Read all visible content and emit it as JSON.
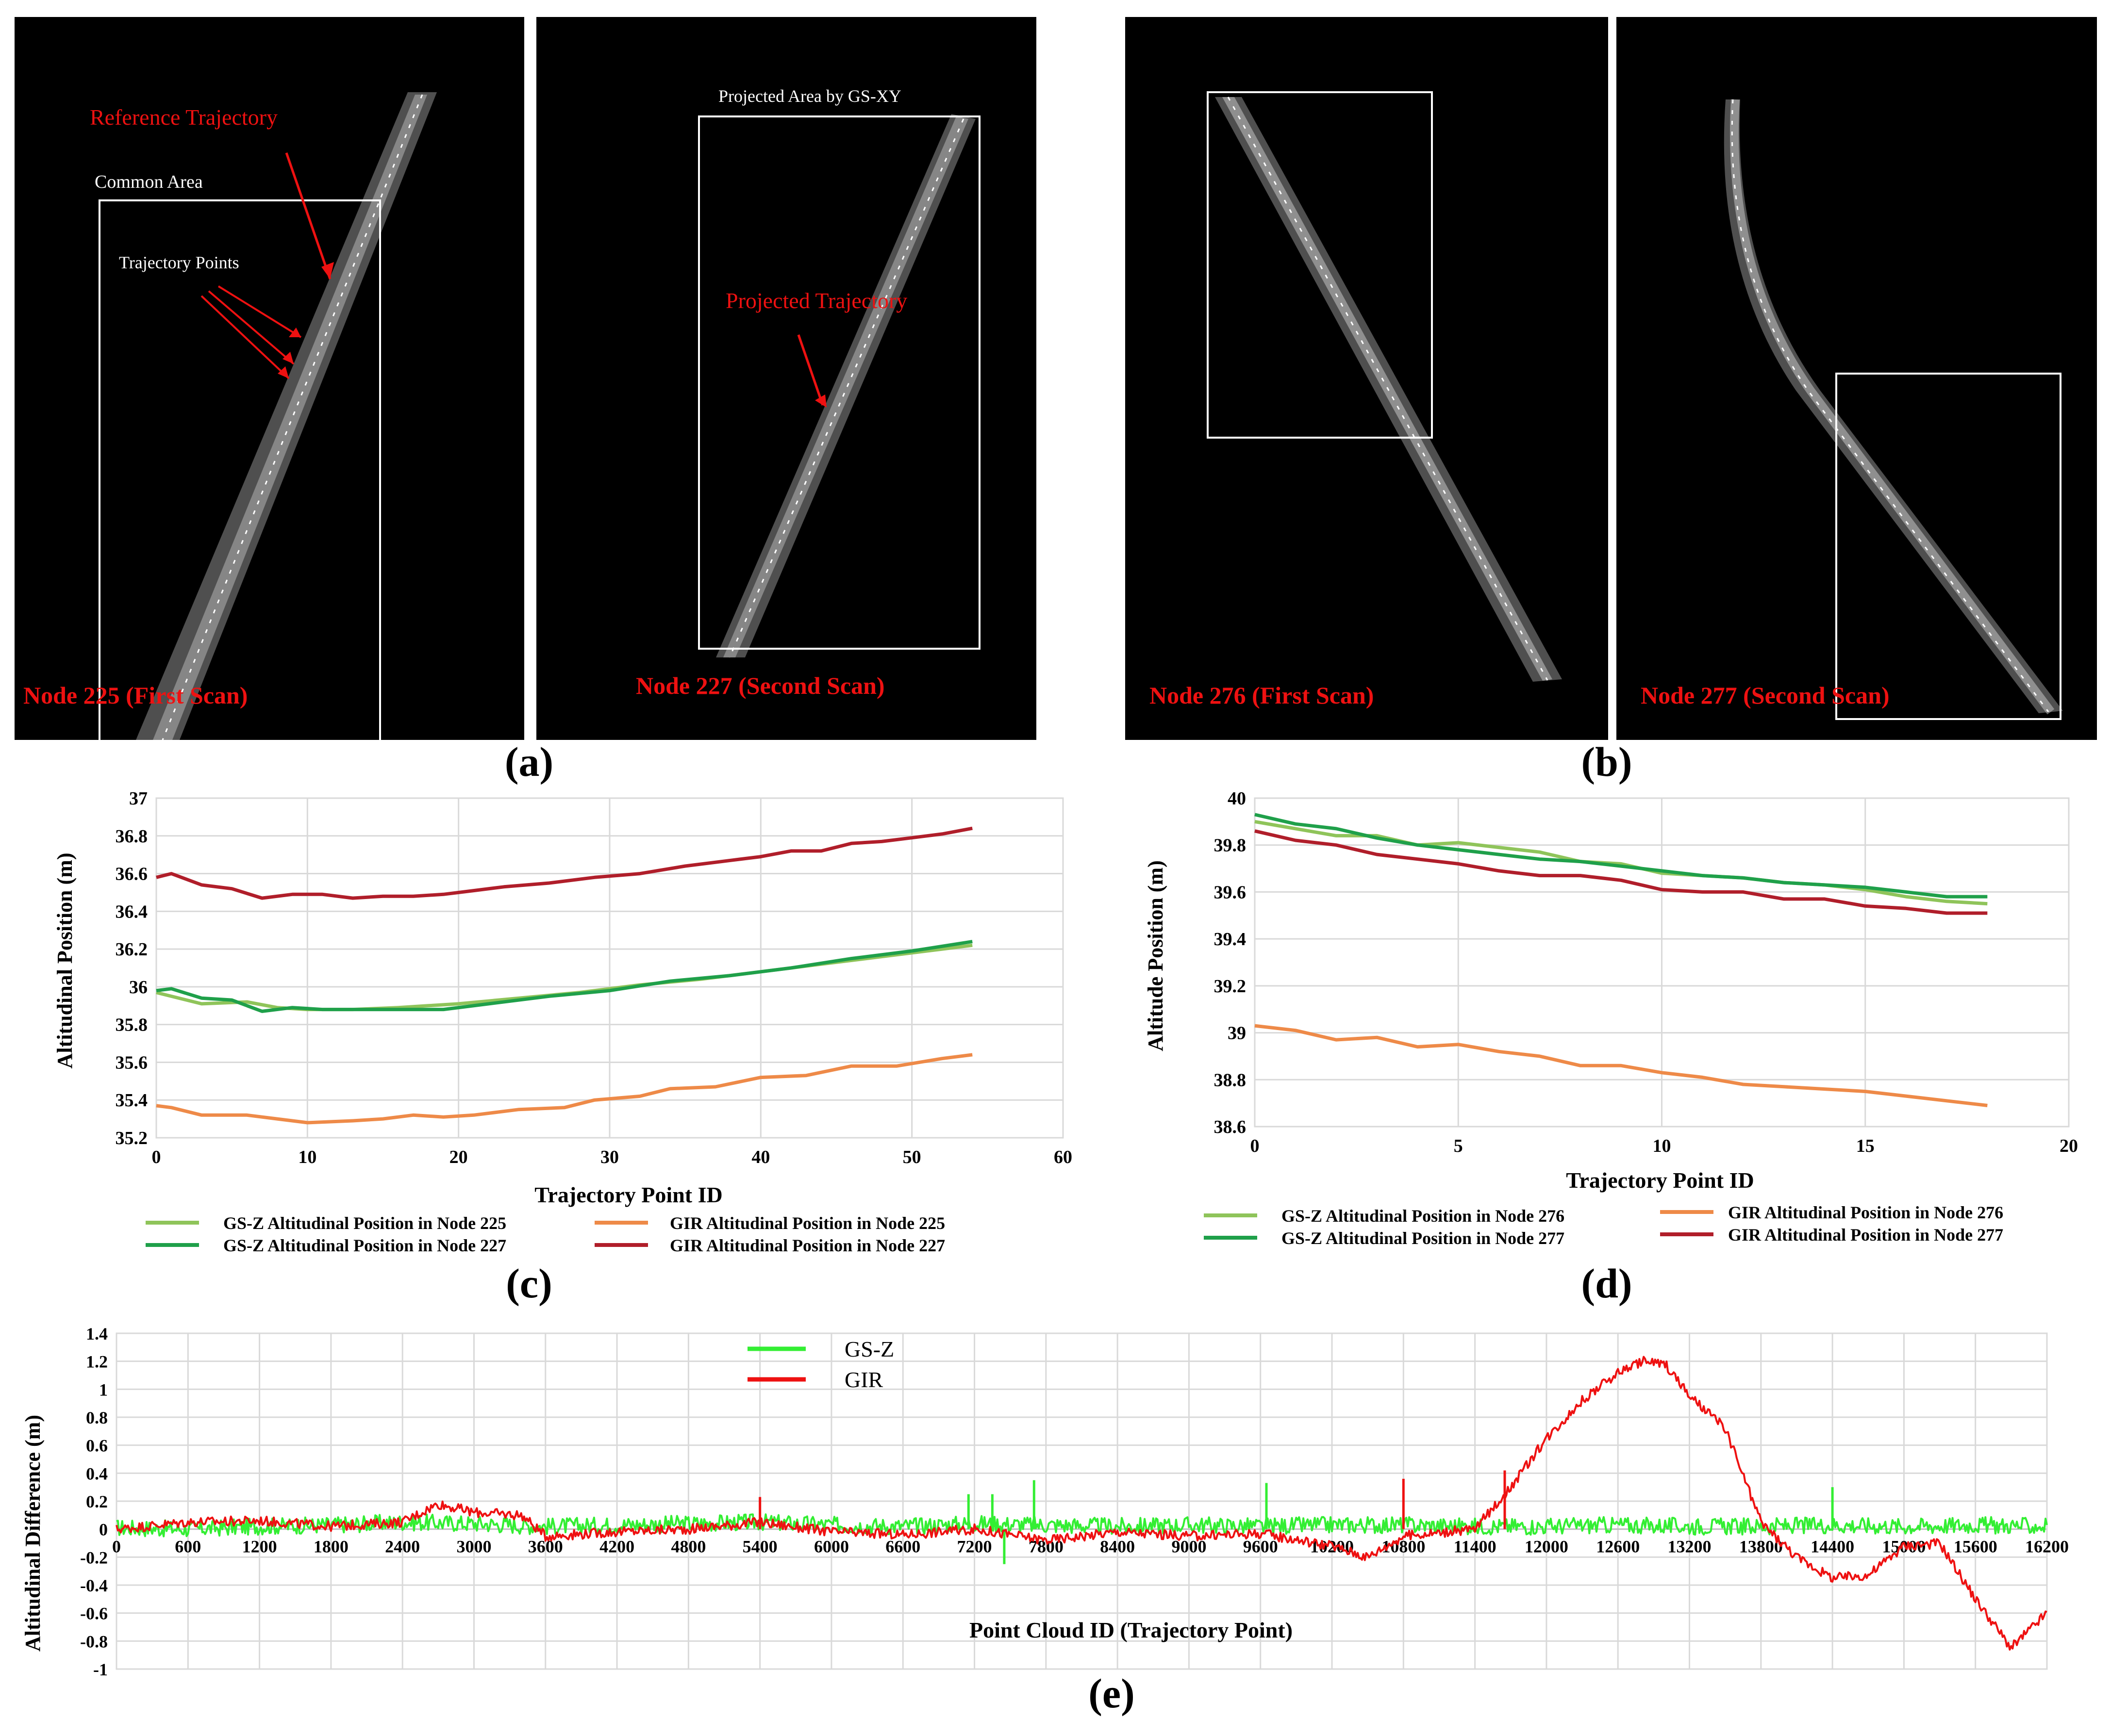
{
  "scan_panels": {
    "a1": {
      "node_label": "Node 225 (First Scan)",
      "ref_label": "Reference Trajectory",
      "common_label": "Common Area",
      "points_label": "Trajectory Points"
    },
    "a2": {
      "node_label": "Node 227 (Second Scan)",
      "proj_area_label": "Projected Area by GS-XY",
      "proj_traj_label": "Projected Trajectory"
    },
    "b1": {
      "node_label": "Node 276 (First Scan)"
    },
    "b2": {
      "node_label": "Node 277 (Second Scan)"
    }
  },
  "captions": {
    "a": "(a)",
    "b": "(b)",
    "c": "(c)",
    "d": "(d)",
    "e": "(e)"
  },
  "colors": {
    "gsz_light": "#8fc45a",
    "gsz_dark": "#1fa04a",
    "gir_orange": "#ee8a48",
    "gir_dark": "#b01e2a",
    "gsz_bright": "#33ee33",
    "gir_red": "#ee1111",
    "annotation_red": "#ee1111"
  },
  "chart_data": [
    {
      "id": "c",
      "type": "line",
      "xlabel": "Trajectory Point ID",
      "ylabel": "Altitudinal Position (m)",
      "xlim": [
        0,
        60
      ],
      "ylim": [
        35.2,
        37
      ],
      "xticks": [
        0,
        10,
        20,
        30,
        40,
        50,
        60
      ],
      "yticks": [
        35.2,
        35.4,
        35.6,
        35.8,
        36,
        36.2,
        36.4,
        36.6,
        36.8,
        37
      ],
      "series": [
        {
          "name": "GS-Z Altitudinal Position in Node 225",
          "color": "#8fc45a",
          "x": [
            0,
            3,
            6,
            8,
            10,
            13,
            16,
            18,
            20,
            24,
            28,
            32,
            36,
            40,
            44,
            48,
            52,
            54
          ],
          "values": [
            35.97,
            35.91,
            35.92,
            35.89,
            35.88,
            35.88,
            35.89,
            35.9,
            35.91,
            35.94,
            35.97,
            36.01,
            36.04,
            36.08,
            36.12,
            36.16,
            36.2,
            36.22
          ]
        },
        {
          "name": "GS-Z Altitudinal Position in Node 227",
          "color": "#1fa04a",
          "x": [
            0,
            1,
            3,
            5,
            7,
            9,
            11,
            13,
            16,
            19,
            22,
            26,
            30,
            34,
            38,
            42,
            46,
            50,
            54
          ],
          "values": [
            35.98,
            35.99,
            35.94,
            35.93,
            35.87,
            35.89,
            35.88,
            35.88,
            35.88,
            35.88,
            35.91,
            35.95,
            35.98,
            36.03,
            36.06,
            36.1,
            36.15,
            36.19,
            36.24
          ]
        },
        {
          "name": "GIR Altitudinal Position in Node 225",
          "color": "#ee8a48",
          "x": [
            0,
            1,
            3,
            6,
            8,
            10,
            13,
            15,
            17,
            19,
            21,
            24,
            27,
            29,
            32,
            34,
            37,
            40,
            43,
            46,
            49,
            52,
            54
          ],
          "values": [
            35.37,
            35.36,
            35.32,
            35.32,
            35.3,
            35.28,
            35.29,
            35.3,
            35.32,
            35.31,
            35.32,
            35.35,
            35.36,
            35.4,
            35.42,
            35.46,
            35.47,
            35.52,
            35.53,
            35.58,
            35.58,
            35.62,
            35.64
          ]
        },
        {
          "name": "GIR Altitudinal Position in Node 227",
          "color": "#b01e2a",
          "x": [
            0,
            1,
            3,
            5,
            7,
            9,
            11,
            13,
            15,
            17,
            19,
            21,
            23,
            26,
            29,
            32,
            35,
            38,
            40,
            42,
            44,
            46,
            48,
            50,
            52,
            54
          ],
          "values": [
            36.58,
            36.6,
            36.54,
            36.52,
            36.47,
            36.49,
            36.49,
            36.47,
            36.48,
            36.48,
            36.49,
            36.51,
            36.53,
            36.55,
            36.58,
            36.6,
            36.64,
            36.67,
            36.69,
            36.72,
            36.72,
            36.76,
            36.77,
            36.79,
            36.81,
            36.84
          ]
        }
      ]
    },
    {
      "id": "d",
      "type": "line",
      "xlabel": "Trajectory Point ID",
      "ylabel": "Altitude Position (m)",
      "xlim": [
        0,
        20
      ],
      "ylim": [
        38.6,
        40
      ],
      "xticks": [
        0,
        5,
        10,
        15,
        20
      ],
      "yticks": [
        38.6,
        38.8,
        39,
        39.2,
        39.4,
        39.6,
        39.8,
        40
      ],
      "series": [
        {
          "name": "GS-Z Altitudinal Position in Node 276",
          "color": "#8fc45a",
          "x": [
            0,
            1,
            2,
            3,
            4,
            5,
            6,
            7,
            8,
            9,
            10,
            11,
            12,
            13,
            14,
            15,
            16,
            17,
            18
          ],
          "values": [
            39.9,
            39.87,
            39.84,
            39.84,
            39.8,
            39.81,
            39.79,
            39.77,
            39.73,
            39.72,
            39.68,
            39.67,
            39.66,
            39.64,
            39.63,
            39.61,
            39.58,
            39.56,
            39.55
          ]
        },
        {
          "name": "GS-Z Altitudinal Position in Node 277",
          "color": "#1fa04a",
          "x": [
            0,
            1,
            2,
            3,
            4,
            5,
            6,
            7,
            8,
            9,
            10,
            11,
            12,
            13,
            14,
            15,
            16,
            17,
            18
          ],
          "values": [
            39.93,
            39.89,
            39.87,
            39.83,
            39.8,
            39.78,
            39.76,
            39.74,
            39.73,
            39.71,
            39.69,
            39.67,
            39.66,
            39.64,
            39.63,
            39.62,
            39.6,
            39.58,
            39.58
          ]
        },
        {
          "name": "GIR Altitudinal Position in Node 276",
          "color": "#ee8a48",
          "x": [
            0,
            1,
            2,
            3,
            4,
            5,
            6,
            7,
            8,
            9,
            10,
            11,
            12,
            13,
            14,
            15,
            16,
            17,
            18
          ],
          "values": [
            39.03,
            39.01,
            38.97,
            38.98,
            38.94,
            38.95,
            38.92,
            38.9,
            38.86,
            38.86,
            38.83,
            38.81,
            38.78,
            38.77,
            38.76,
            38.75,
            38.73,
            38.71,
            38.69
          ]
        },
        {
          "name": "GIR Altitudinal Position in Node 277",
          "color": "#b01e2a",
          "x": [
            0,
            1,
            2,
            3,
            4,
            5,
            6,
            7,
            8,
            9,
            10,
            11,
            12,
            13,
            14,
            15,
            16,
            17,
            18
          ],
          "values": [
            39.86,
            39.82,
            39.8,
            39.76,
            39.74,
            39.72,
            39.69,
            39.67,
            39.67,
            39.65,
            39.61,
            39.6,
            39.6,
            39.57,
            39.57,
            39.54,
            39.53,
            39.51,
            39.51
          ]
        }
      ]
    },
    {
      "id": "e",
      "type": "line",
      "xlabel": "Point Cloud ID (Trajectory Point)",
      "ylabel": "Altitudinal Difference (m)",
      "xlim": [
        0,
        16200
      ],
      "ylim": [
        -1,
        1.4
      ],
      "xticks": [
        0,
        600,
        1200,
        1800,
        2400,
        3000,
        3600,
        4200,
        4800,
        5400,
        6000,
        6600,
        7200,
        7800,
        8400,
        9000,
        9600,
        10200,
        10800,
        11400,
        12000,
        12600,
        13200,
        13800,
        14400,
        15000,
        15600,
        16200
      ],
      "yticks": [
        -1,
        -0.8,
        -0.6,
        -0.4,
        -0.2,
        0,
        0.2,
        0.4,
        0.6,
        0.8,
        1,
        1.2,
        1.4
      ],
      "series": [
        {
          "name": "GS-Z",
          "color": "#33ee33",
          "x": [
            0,
            600,
            1200,
            1800,
            2400,
            3000,
            3600,
            4200,
            4800,
            5400,
            6000,
            6600,
            7200,
            7800,
            8400,
            9000,
            9600,
            10200,
            10800,
            11400,
            12000,
            12600,
            13200,
            13800,
            14400,
            15000,
            15600,
            16200
          ],
          "values": [
            0.01,
            0.0,
            0.02,
            0.03,
            0.05,
            0.04,
            0.02,
            0.03,
            0.04,
            0.05,
            0.03,
            0.02,
            0.04,
            0.03,
            0.02,
            0.03,
            0.02,
            0.03,
            0.03,
            0.02,
            0.02,
            0.03,
            0.02,
            0.02,
            0.03,
            0.02,
            0.03,
            0.02
          ],
          "spikes": [
            {
              "x": 7150,
              "value": 0.25
            },
            {
              "x": 7350,
              "value": 0.25
            },
            {
              "x": 7450,
              "value": -0.25
            },
            {
              "x": 7700,
              "value": 0.35
            },
            {
              "x": 9650,
              "value": 0.33
            },
            {
              "x": 14400,
              "value": 0.3
            }
          ]
        },
        {
          "name": "GIR",
          "color": "#ee1111",
          "x": [
            0,
            600,
            1200,
            1800,
            2400,
            2700,
            3000,
            3400,
            3600,
            4200,
            4800,
            5400,
            6000,
            6600,
            7200,
            7800,
            8400,
            9000,
            9600,
            10200,
            10500,
            10800,
            11400,
            11700,
            12000,
            12300,
            12600,
            12800,
            13000,
            13200,
            13500,
            13800,
            14100,
            14400,
            14700,
            15000,
            15300,
            15600,
            15900,
            16200
          ],
          "values": [
            0.0,
            0.05,
            0.06,
            0.02,
            0.05,
            0.18,
            0.12,
            0.1,
            -0.05,
            -0.02,
            0.0,
            0.05,
            -0.02,
            -0.04,
            0.0,
            -0.08,
            -0.02,
            -0.05,
            -0.03,
            -0.12,
            -0.2,
            -0.05,
            0.0,
            0.3,
            0.65,
            0.92,
            1.12,
            1.2,
            1.18,
            0.95,
            0.72,
            0.05,
            -0.2,
            -0.35,
            -0.33,
            -0.12,
            -0.1,
            -0.5,
            -0.85,
            -0.6
          ],
          "spikes": [
            {
              "x": 10800,
              "value": 0.36
            },
            {
              "x": 11650,
              "value": 0.42
            },
            {
              "x": 5400,
              "value": 0.23
            }
          ]
        }
      ]
    }
  ]
}
